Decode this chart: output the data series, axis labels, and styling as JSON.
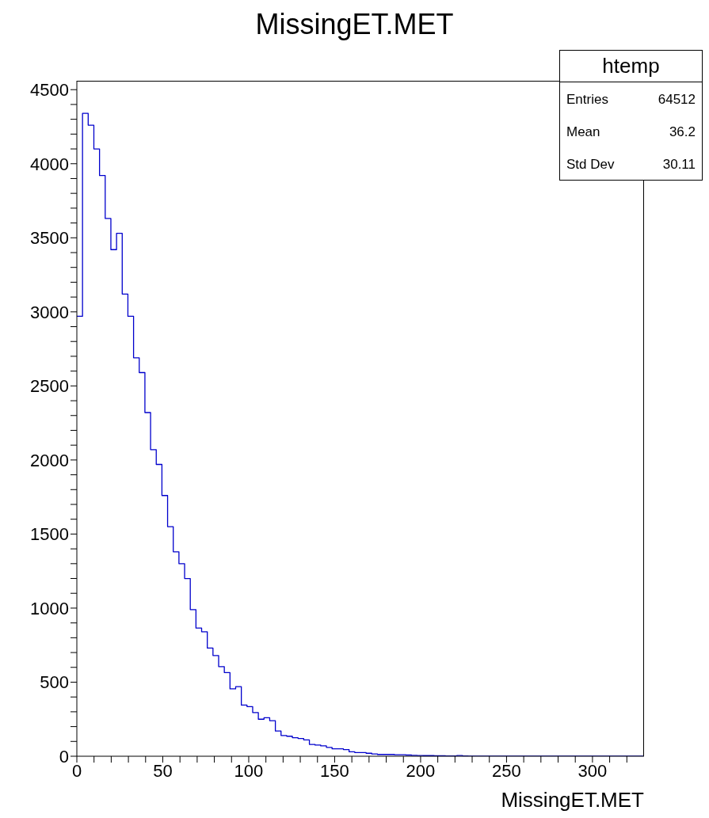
{
  "chart_data": {
    "type": "histogram",
    "title": "MissingET.MET",
    "xlabel": "MissingET.MET",
    "color": "#0000cc",
    "bins": [
      0,
      3.3,
      6.6,
      9.9,
      13.2,
      16.5,
      19.8,
      23.1,
      26.4,
      29.7,
      33,
      36.3,
      39.6,
      42.9,
      46.2,
      49.5,
      52.8,
      56.1,
      59.4,
      62.7,
      66,
      69.3,
      72.6,
      75.9,
      79.2,
      82.5,
      85.8,
      89.1,
      92.4,
      95.7,
      99,
      102.3,
      105.6,
      108.9,
      112.2,
      115.5,
      118.8,
      122.1,
      125.4,
      128.7,
      132,
      135.3,
      138.6,
      141.9,
      145.2,
      148.5,
      151.8,
      155.1,
      158.4,
      161.7,
      165,
      168.3,
      171.6,
      174.9,
      178.2,
      181.5,
      184.8,
      188.1,
      191.4,
      194.7,
      198,
      201.3,
      204.6,
      207.9,
      211.2,
      214.5,
      217.8,
      221.1,
      224.4,
      227.7,
      231,
      234.3,
      237.6,
      240.9,
      244.2,
      247.5,
      250.8,
      254.1,
      257.4,
      260.7,
      264,
      267.3,
      270.6,
      273.9,
      277.2,
      280.5,
      283.8,
      287.1,
      290.4,
      293.7,
      297,
      300.3,
      303.6,
      306.9,
      310.2,
      313.5,
      316.8,
      320.1,
      323.4,
      326.7,
      330
    ],
    "values": [
      2970,
      4340,
      4260,
      4100,
      3920,
      3630,
      3420,
      3530,
      3120,
      2970,
      2690,
      2590,
      2320,
      2070,
      1970,
      1760,
      1550,
      1380,
      1300,
      1200,
      990,
      865,
      840,
      730,
      680,
      605,
      565,
      455,
      470,
      345,
      335,
      295,
      250,
      260,
      240,
      170,
      140,
      135,
      125,
      120,
      110,
      80,
      75,
      70,
      60,
      50,
      50,
      45,
      30,
      25,
      25,
      20,
      15,
      12,
      12,
      12,
      10,
      10,
      8,
      6,
      5,
      4,
      4,
      3,
      3,
      2,
      2,
      5,
      2,
      1,
      1,
      1,
      1,
      1,
      1,
      0,
      0,
      0,
      0,
      0,
      0,
      0,
      0,
      0,
      0,
      0,
      0,
      0,
      0,
      0,
      0,
      0,
      0,
      0,
      0,
      0,
      0,
      0,
      0,
      0
    ],
    "xlim": [
      0,
      330
    ],
    "xticks": [
      0,
      {
        "value": 10,
        "label": null
      },
      {
        "value": 20,
        "label": null
      },
      {
        "value": 30,
        "label": null
      },
      {
        "value": 40,
        "label": null
      },
      50,
      {
        "value": 60,
        "label": null
      },
      {
        "value": 70,
        "label": null
      },
      {
        "value": 80,
        "label": null
      },
      {
        "value": 90,
        "label": null
      },
      100,
      {
        "value": 110,
        "label": null
      },
      {
        "value": 120,
        "label": null
      },
      {
        "value": 130,
        "label": null
      },
      {
        "value": 140,
        "label": null
      },
      150,
      {
        "value": 160,
        "label": null
      },
      {
        "value": 170,
        "label": null
      },
      {
        "value": 180,
        "label": null
      },
      {
        "value": 190,
        "label": null
      },
      200,
      {
        "value": 210,
        "label": null
      },
      {
        "value": 220,
        "label": null
      },
      {
        "value": 230,
        "label": null
      },
      {
        "value": 240,
        "label": null
      },
      250,
      {
        "value": 260,
        "label": null
      },
      {
        "value": 270,
        "label": null
      },
      {
        "value": 280,
        "label": null
      },
      {
        "value": 290,
        "label": null
      },
      300,
      {
        "value": 310,
        "label": null
      },
      {
        "value": 320,
        "label": null
      }
    ],
    "ylim": [
      0,
      4560
    ],
    "yticks": [
      0,
      {
        "value": 100,
        "label": null
      },
      {
        "value": 200,
        "label": null
      },
      {
        "value": 300,
        "label": null
      },
      {
        "value": 400,
        "label": null
      },
      500,
      {
        "value": 600,
        "label": null
      },
      {
        "value": 700,
        "label": null
      },
      {
        "value": 800,
        "label": null
      },
      {
        "value": 900,
        "label": null
      },
      1000,
      {
        "value": 1100,
        "label": null
      },
      {
        "value": 1200,
        "label": null
      },
      {
        "value": 1300,
        "label": null
      },
      {
        "value": 1400,
        "label": null
      },
      1500,
      {
        "value": 1600,
        "label": null
      },
      {
        "value": 1700,
        "label": null
      },
      {
        "value": 1800,
        "label": null
      },
      {
        "value": 1900,
        "label": null
      },
      2000,
      {
        "value": 2100,
        "label": null
      },
      {
        "value": 2200,
        "label": null
      },
      {
        "value": 2300,
        "label": null
      },
      {
        "value": 2400,
        "label": null
      },
      2500,
      {
        "value": 2600,
        "label": null
      },
      {
        "value": 2700,
        "label": null
      },
      {
        "value": 2800,
        "label": null
      },
      {
        "value": 2900,
        "label": null
      },
      3000,
      {
        "value": 3100,
        "label": null
      },
      {
        "value": 3200,
        "label": null
      },
      {
        "value": 3300,
        "label": null
      },
      {
        "value": 3400,
        "label": null
      },
      3500,
      {
        "value": 3600,
        "label": null
      },
      {
        "value": 3700,
        "label": null
      },
      {
        "value": 3800,
        "label": null
      },
      {
        "value": 3900,
        "label": null
      },
      4000,
      {
        "value": 4100,
        "label": null
      },
      {
        "value": 4200,
        "label": null
      },
      {
        "value": 4300,
        "label": null
      },
      {
        "value": 4400,
        "label": null
      },
      4500
    ],
    "annotations": [
      "htemp",
      "Entries",
      "64512",
      "Mean",
      "36.2",
      "Std Dev",
      "30.11"
    ]
  }
}
